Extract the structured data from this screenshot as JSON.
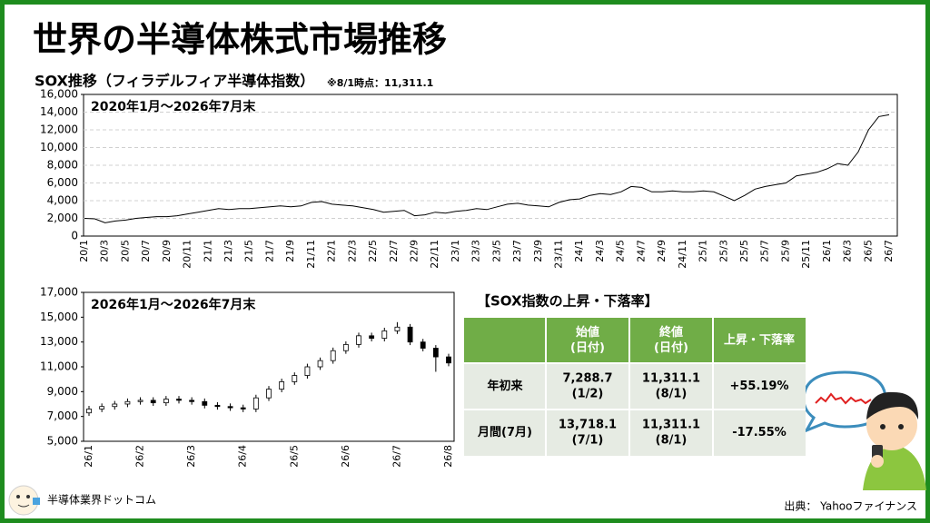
{
  "title": "世界の半導体株式市場推移",
  "subtitle": "SOX推移（フィラデルフィア半導体指数）",
  "note": "※8/1時点：11,311.1",
  "chart_data": [
    {
      "type": "line",
      "title": "2020年1月～2026年7月末",
      "color": "#000000",
      "grid": true,
      "categories": [
        "20/1",
        null,
        "20/3",
        null,
        "20/5",
        null,
        "20/7",
        null,
        "20/9",
        null,
        "20/11",
        null,
        "21/1",
        null,
        "21/3",
        null,
        "21/5",
        null,
        "21/7",
        null,
        "21/9",
        null,
        "21/11",
        null,
        "22/1",
        null,
        "22/3",
        null,
        "22/5",
        null,
        "22/7",
        null,
        "22/9",
        null,
        "22/11",
        null,
        "23/1",
        null,
        "23/3",
        null,
        "23/5",
        null,
        "23/7",
        null,
        "23/9",
        null,
        "23/11",
        null,
        "24/1",
        null,
        "24/3",
        null,
        "24/5",
        null,
        "24/7",
        null,
        "24/9",
        null,
        "24/11",
        null,
        "25/1",
        null,
        "25/3",
        null,
        "25/5",
        null,
        "25/7",
        null,
        "25/9",
        null,
        "25/11",
        null,
        "26/1",
        null,
        "26/3",
        null,
        "26/5",
        null,
        "26/7"
      ],
      "values": [
        2000,
        1950,
        1500,
        1700,
        1800,
        2000,
        2100,
        2200,
        2200,
        2300,
        2500,
        2700,
        2900,
        3100,
        3000,
        3100,
        3100,
        3200,
        3300,
        3400,
        3300,
        3400,
        3800,
        3900,
        3600,
        3500,
        3400,
        3200,
        3000,
        2700,
        2800,
        2900,
        2300,
        2400,
        2700,
        2600,
        2800,
        2900,
        3100,
        3000,
        3300,
        3600,
        3700,
        3500,
        3400,
        3300,
        3800,
        4100,
        4200,
        4600,
        4800,
        4700,
        5000,
        5600,
        5500,
        5000,
        5000,
        5100,
        5000,
        5000,
        5100,
        5000,
        4500,
        4000,
        4600,
        5300,
        5600,
        5800,
        6000,
        6800,
        7000,
        7200,
        7600,
        8200,
        8000,
        9500,
        12000,
        13500,
        13700
      ],
      "ylim": [
        0,
        16000
      ],
      "yticks": [
        0,
        {
          "value": 2000,
          "label": "2,000"
        },
        {
          "value": 4000,
          "label": "4,000"
        },
        {
          "value": 6000,
          "label": "6,000"
        },
        {
          "value": 8000,
          "label": "8,000"
        },
        {
          "value": 10000,
          "label": "10,000"
        },
        {
          "value": 12000,
          "label": "12,000"
        },
        {
          "value": 14000,
          "label": "14,000"
        },
        {
          "value": 16000,
          "label": "16,000"
        }
      ]
    },
    {
      "type": "candlestick",
      "title": "2026年1月～2026年7月末",
      "up_color": "#ffffff",
      "down_color": "#000000",
      "grid": false,
      "categories": [
        "26/1",
        null,
        null,
        null,
        "26/2",
        null,
        null,
        null,
        "26/3",
        null,
        null,
        null,
        "26/4",
        null,
        null,
        null,
        "26/5",
        null,
        null,
        null,
        "26/6",
        null,
        null,
        null,
        "26/7",
        null,
        null,
        null,
        "26/8"
      ],
      "open": [
        7289,
        7600,
        7800,
        8000,
        8200,
        8300,
        8100,
        8400,
        8300,
        8200,
        7900,
        7800,
        7700,
        7600,
        8500,
        9200,
        9800,
        10300,
        11000,
        11500,
        12300,
        12800,
        13500,
        13300,
        13900,
        14200,
        13000,
        12500,
        11800
      ],
      "high": [
        7850,
        8050,
        8250,
        8450,
        8550,
        8550,
        8650,
        8650,
        8550,
        8450,
        8150,
        8050,
        7950,
        8750,
        9450,
        10050,
        10550,
        11250,
        11750,
        12550,
        13050,
        13750,
        13750,
        14150,
        14600,
        14450,
        13250,
        12750,
        12050
      ],
      "low": [
        7050,
        7350,
        7550,
        7750,
        7950,
        7850,
        7850,
        8050,
        7950,
        7650,
        7550,
        7450,
        7350,
        7350,
        8250,
        8950,
        9550,
        10050,
        10750,
        11250,
        12050,
        12550,
        13050,
        13050,
        13650,
        12750,
        12250,
        10600,
        11050
      ],
      "close": [
        7600,
        7800,
        8000,
        8200,
        8300,
        8100,
        8400,
        8300,
        8200,
        7900,
        7800,
        7700,
        7600,
        8500,
        9200,
        9800,
        10300,
        11000,
        11500,
        12300,
        12800,
        13500,
        13300,
        13900,
        14200,
        13000,
        12500,
        11800,
        11311
      ],
      "ylim": [
        5000,
        17000
      ],
      "yticks": [
        {
          "value": 5000,
          "label": "5,000"
        },
        {
          "value": 7000,
          "label": "7,000"
        },
        {
          "value": 9000,
          "label": "9,000"
        },
        {
          "value": 11000,
          "label": "11,000"
        },
        {
          "value": 13000,
          "label": "13,000"
        },
        {
          "value": 15000,
          "label": "15,000"
        },
        {
          "value": 17000,
          "label": "17,000"
        }
      ]
    }
  ],
  "table": {
    "title": "【SOX指数の上昇・下落率】",
    "header": [
      [
        "始値",
        "(日付)"
      ],
      [
        "終値",
        "(日付)"
      ],
      [
        "上昇・下落率"
      ]
    ],
    "rows": [
      {
        "label": "年初来",
        "cells": [
          [
            "7,288.7",
            "(1/2)"
          ],
          [
            "11,311.1",
            "(8/1)"
          ],
          [
            "+55.19%"
          ]
        ]
      },
      {
        "label": "月間(7月)",
        "cells": [
          [
            "13,718.1",
            "(7/1)"
          ],
          [
            "11,311.1",
            "(8/1)"
          ],
          [
            "-17.55%"
          ]
        ]
      }
    ]
  },
  "footer": {
    "site": "半導体業界ドットコム",
    "source": "出典： Yahooファイナンス"
  }
}
